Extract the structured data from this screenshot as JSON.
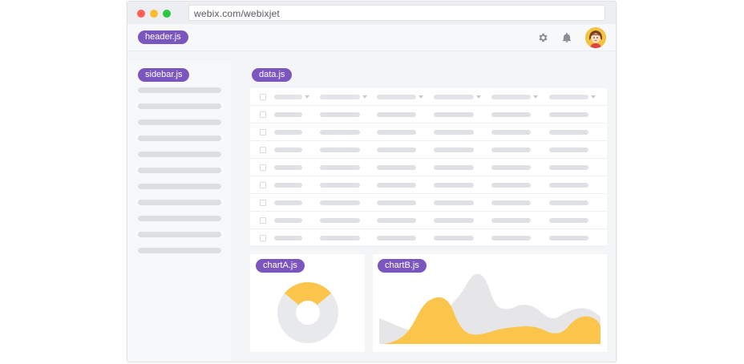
{
  "browser": {
    "url": "webix.com/webixjet"
  },
  "header": {
    "tag": "header.js",
    "icons": [
      "gear-icon",
      "bell-icon",
      "avatar"
    ]
  },
  "sidebar": {
    "tag": "sidebar.js",
    "placeholder_rows": 11
  },
  "data": {
    "tag": "data.js",
    "columns": 6,
    "rows": 8
  },
  "chartA": {
    "tag": "chartA.js",
    "type": "pie",
    "slices": [
      {
        "fraction": 0.28,
        "color": "#fbc54b"
      },
      {
        "fraction": 0.72,
        "color": "#e8e9ec"
      }
    ]
  },
  "chartB": {
    "tag": "chartB.js",
    "type": "area",
    "colors": {
      "back": "#e6e6e8",
      "front": "#fbc54b"
    }
  },
  "colors": {
    "tag": "#7a56be",
    "accent": "#fbc54b",
    "placeholder": "#dcdee2"
  }
}
